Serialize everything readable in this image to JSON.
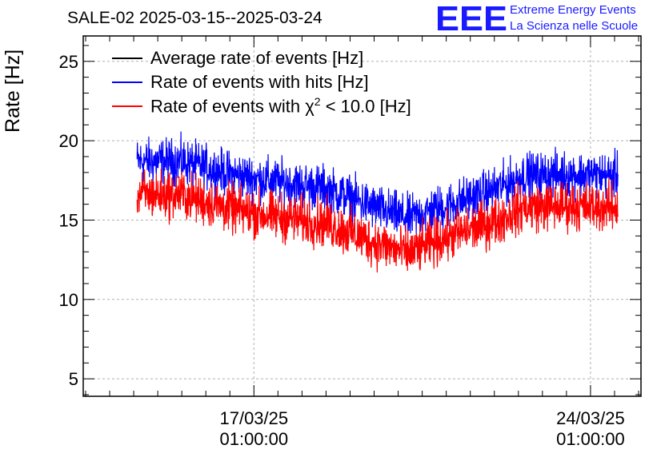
{
  "title": "SALE-02 2025-03-15--2025-03-24",
  "branding": {
    "logo_text": "EEE",
    "line1": "Extreme Energy Events",
    "line2": "La Scienza nelle Scuole",
    "color": "#1a1aff"
  },
  "legend": [
    {
      "label": "Average rate of events [Hz]",
      "color": "#000000"
    },
    {
      "label": "Rate of events with hits [Hz]",
      "color": "#0000ff"
    },
    {
      "label_prefix": "Rate of events with ",
      "symbol": "χ",
      "superscript": "2",
      "label_suffix": " < 10.0 [Hz]",
      "color": "#ff0000"
    }
  ],
  "chart_data": {
    "type": "line",
    "title": "SALE-02 2025-03-15--2025-03-24",
    "ylabel": "Rate [Hz]",
    "xlabel": "",
    "ylim": [
      3.9,
      26.6
    ],
    "xlim_days_from_2025-03-15T01:00": [
      -1.55,
      10.05
    ],
    "x_ticks": [
      {
        "days": 2,
        "line1": "17/03/25",
        "line2": "01:00:00"
      },
      {
        "days": 9,
        "line1": "24/03/25",
        "line2": "01:00:00"
      }
    ],
    "y_ticks": [
      5,
      10,
      15,
      20,
      25
    ],
    "grid": true,
    "legend_position": "top-left",
    "x_range_days": [
      -0.43,
      9.57
    ],
    "series": [
      {
        "name": "Rate of events with hits [Hz]",
        "color": "#0000ff",
        "x_days": [
          -0.43,
          0.5,
          1.5,
          2.5,
          3.5,
          4.5,
          5.2,
          6.0,
          7.0,
          7.6,
          8.5,
          9.57
        ],
        "y_mean": [
          18.7,
          18.7,
          17.9,
          17.4,
          17.0,
          15.8,
          15.1,
          15.9,
          16.9,
          17.8,
          17.9,
          17.8
        ],
        "noise": 0.7
      },
      {
        "name": "Rate of events with χ2 < 10.0 [Hz]",
        "color": "#ff0000",
        "x_days": [
          -0.43,
          0.5,
          1.5,
          2.5,
          3.5,
          4.5,
          5.2,
          6.0,
          7.0,
          7.6,
          8.5,
          9.57
        ],
        "y_mean": [
          16.6,
          16.6,
          15.7,
          15.2,
          14.8,
          13.6,
          12.9,
          13.9,
          14.9,
          15.8,
          15.9,
          15.8
        ],
        "noise": 0.75
      }
    ]
  }
}
